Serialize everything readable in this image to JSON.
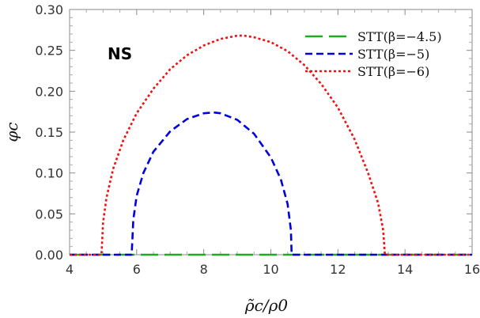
{
  "chart_data": {
    "type": "line",
    "title": "",
    "xlabel": "ρ̃c/ρ0",
    "ylabel": "φc",
    "xlim": [
      4,
      16
    ],
    "ylim": [
      0,
      0.3
    ],
    "xticks": [
      "4",
      "6",
      "8",
      "10",
      "12",
      "14",
      "16"
    ],
    "yticks": [
      "0.00",
      "0.05",
      "0.10",
      "0.15",
      "0.20",
      "0.25",
      "0.30"
    ],
    "annotation": "NS",
    "legend_position": "top-right",
    "grid": false,
    "series": [
      {
        "name": "STT(β=−4.5)",
        "color": "#22aa22",
        "dash": "long-dash",
        "x": [
          4,
          16
        ],
        "y": [
          0,
          0
        ]
      },
      {
        "name": "STT(β=−5)",
        "color": "#0000dd",
        "dash": "dash",
        "x": [
          4,
          5.85,
          5.9,
          6.0,
          6.2,
          6.5,
          7.0,
          7.5,
          8.0,
          8.3,
          8.5,
          9.0,
          9.5,
          10.0,
          10.3,
          10.5,
          10.6,
          10.62,
          16
        ],
        "y": [
          0,
          0,
          0.043,
          0.072,
          0.1,
          0.126,
          0.151,
          0.166,
          0.173,
          0.174,
          0.173,
          0.165,
          0.148,
          0.119,
          0.092,
          0.062,
          0.03,
          0,
          0
        ]
      },
      {
        "name": "STT(β=−6)",
        "color": "#ee1111",
        "dash": "dot",
        "x": [
          4,
          4.95,
          5.0,
          5.1,
          5.3,
          5.6,
          6.0,
          6.5,
          7.0,
          7.5,
          8.0,
          8.5,
          9.0,
          9.2,
          9.5,
          10.0,
          10.5,
          11.0,
          11.5,
          12.0,
          12.5,
          12.9,
          13.2,
          13.35,
          13.4,
          16
        ],
        "y": [
          0,
          0,
          0.04,
          0.07,
          0.105,
          0.14,
          0.173,
          0.203,
          0.227,
          0.244,
          0.256,
          0.264,
          0.268,
          0.268,
          0.266,
          0.26,
          0.249,
          0.232,
          0.209,
          0.18,
          0.141,
          0.1,
          0.063,
          0.03,
          0,
          0
        ]
      }
    ]
  }
}
